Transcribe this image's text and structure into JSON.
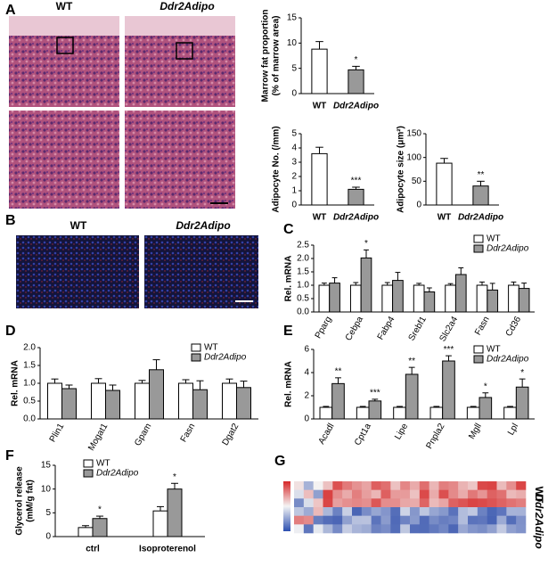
{
  "figure": {
    "panels": [
      "A",
      "B",
      "C",
      "D",
      "E",
      "F",
      "G"
    ],
    "image_labels": {
      "A": [
        "WT",
        "Ddr2Adipo"
      ],
      "B": [
        "WT",
        "Ddr2Adipo"
      ],
      "G": [
        "WT",
        "Ddr2Adipo"
      ]
    }
  },
  "chart_data": [
    {
      "type": "bar",
      "ylabel": [
        "Marrow fat proportion",
        "(% of marrow area)"
      ],
      "categories": [
        "WT",
        "Ddr2Adipo"
      ],
      "values": [
        8.8,
        4.7
      ],
      "errors": [
        1.5,
        0.7
      ],
      "colors": [
        "#ffffff",
        "#999999"
      ],
      "annotations": [
        null,
        "*"
      ],
      "ylim": [
        0,
        15
      ],
      "yticks": [
        0,
        5,
        10,
        15
      ]
    },
    {
      "type": "bar",
      "ylabel": [
        "Adipocyte No. (/mm)"
      ],
      "categories": [
        "WT",
        "Ddr2Adipo"
      ],
      "values": [
        3.6,
        1.1
      ],
      "errors": [
        0.45,
        0.15
      ],
      "colors": [
        "#ffffff",
        "#999999"
      ],
      "annotations": [
        null,
        "***"
      ],
      "ylim": [
        0,
        5
      ],
      "yticks": [
        0,
        1,
        2,
        3,
        4,
        5
      ]
    },
    {
      "type": "bar",
      "ylabel": [
        "Adipocyte size (μm²)"
      ],
      "categories": [
        "WT",
        "Ddr2Adipo"
      ],
      "values": [
        88,
        40
      ],
      "errors": [
        10,
        10
      ],
      "colors": [
        "#ffffff",
        "#999999"
      ],
      "annotations": [
        null,
        "**"
      ],
      "ylim": [
        0,
        150
      ],
      "yticks": [
        0,
        50,
        100,
        150
      ]
    },
    {
      "type": "bar",
      "ylabel": [
        "Rel. mRNA"
      ],
      "categories": [
        "Pparg",
        "Cebpa",
        "Fabp4",
        "Srebf1",
        "Slc2a4",
        "Fasn",
        "Cd36"
      ],
      "series": [
        {
          "name": "WT",
          "color": "#ffffff",
          "values": [
            1,
            1,
            1,
            1,
            1,
            1,
            1
          ],
          "errors": [
            0.08,
            0.1,
            0.1,
            0.07,
            0.06,
            0.12,
            0.12
          ]
        },
        {
          "name": "Ddr2Adipo",
          "color": "#999999",
          "values": [
            1.08,
            2.02,
            1.18,
            0.75,
            1.4,
            0.82,
            0.88
          ],
          "errors": [
            0.2,
            0.3,
            0.3,
            0.15,
            0.25,
            0.25,
            0.2
          ],
          "annotations": [
            null,
            "*",
            null,
            null,
            null,
            null,
            null
          ]
        }
      ],
      "ylim": [
        0,
        2.5
      ],
      "yticks": [
        {
          "value": 0,
          "label": "0.0"
        },
        {
          "value": 0.5,
          "label": "0.5"
        },
        {
          "value": 1,
          "label": "1.0"
        },
        {
          "value": 1.5,
          "label": "1.5"
        },
        {
          "value": 2,
          "label": "2.0"
        },
        {
          "value": 2.5,
          "label": "2.5"
        }
      ]
    },
    {
      "type": "bar",
      "ylabel": [
        "Rel. mRNA"
      ],
      "categories": [
        "Plin1",
        "Mogat1",
        "Gpam",
        "Fasn",
        "Dgat2"
      ],
      "series": [
        {
          "name": "WT",
          "color": "#ffffff",
          "values": [
            1,
            1,
            1,
            1,
            1
          ],
          "errors": [
            0.12,
            0.13,
            0.08,
            0.1,
            0.12
          ]
        },
        {
          "name": "Ddr2Adipo",
          "color": "#999999",
          "values": [
            0.85,
            0.8,
            1.38,
            0.82,
            0.88
          ],
          "errors": [
            0.1,
            0.15,
            0.28,
            0.25,
            0.18
          ]
        }
      ],
      "ylim": [
        0,
        2
      ],
      "yticks": [
        {
          "value": 0,
          "label": "0.0"
        },
        {
          "value": 0.5,
          "label": "0.5"
        },
        {
          "value": 1,
          "label": "1.0"
        },
        {
          "value": 1.5,
          "label": "1.5"
        },
        {
          "value": 2,
          "label": "2.0"
        }
      ]
    },
    {
      "type": "bar",
      "ylabel": [
        "Rel. mRNA"
      ],
      "categories": [
        "Acadl",
        "Cpt1a",
        "Lipe",
        "Pnpla2",
        "Mgll",
        "Lpl"
      ],
      "series": [
        {
          "name": "WT",
          "color": "#ffffff",
          "values": [
            1,
            1,
            1,
            1,
            1,
            1
          ],
          "errors": [
            0.08,
            0.08,
            0.08,
            0.08,
            0.08,
            0.08
          ]
        },
        {
          "name": "Ddr2Adipo",
          "color": "#999999",
          "values": [
            3.05,
            1.55,
            3.85,
            5.0,
            1.85,
            2.75
          ],
          "errors": [
            0.5,
            0.15,
            0.6,
            0.45,
            0.4,
            0.7
          ],
          "annotations": [
            "**",
            "***",
            "**",
            "***",
            "*",
            "*"
          ]
        }
      ],
      "ylim": [
        0,
        6
      ],
      "yticks": [
        0,
        2,
        4,
        6
      ]
    },
    {
      "type": "bar",
      "ylabel": [
        "Glycerol release",
        "(mM/g fat)"
      ],
      "categories": [
        "ctrl",
        "Isoproterenol"
      ],
      "series": [
        {
          "name": "WT",
          "color": "#ffffff",
          "values": [
            1.9,
            5.4
          ],
          "errors": [
            0.4,
            0.9
          ]
        },
        {
          "name": "Ddr2Adipo",
          "color": "#999999",
          "values": [
            3.8,
            10.0
          ],
          "errors": [
            0.5,
            1.2
          ],
          "annotations": [
            "*",
            "*"
          ]
        }
      ],
      "ylim": [
        0,
        15
      ],
      "yticks": [
        0,
        5,
        10,
        15
      ]
    }
  ]
}
